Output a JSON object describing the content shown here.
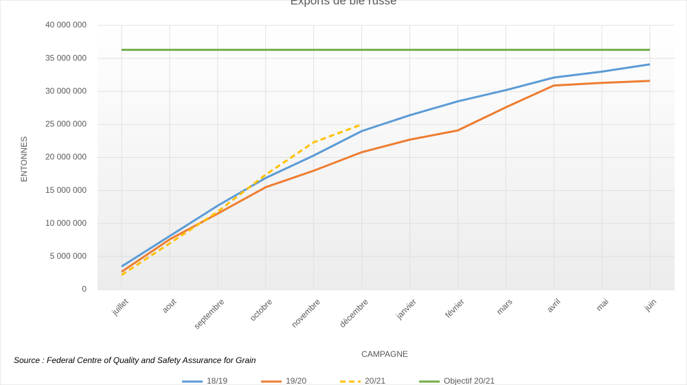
{
  "chart_data": {
    "type": "line",
    "title": "Exports de blé russe",
    "x_label": "CAMPAGNE",
    "y_label": "ENTONNES",
    "source": "Source : Federal Centre of Quality and Safety Assurance for Grain",
    "categories": [
      "juillet",
      "aout",
      "septembre",
      "octobre",
      "novembre",
      "décembre",
      "janvier",
      "février",
      "mars",
      "avril",
      "mai",
      "juin"
    ],
    "series": [
      {
        "name": "18/19",
        "color": "#5b9bd5",
        "dashed": false,
        "values": [
          3500000,
          8100000,
          12700000,
          16900000,
          20300000,
          24000000,
          26400000,
          28500000,
          30200000,
          32100000,
          33000000,
          34100000
        ]
      },
      {
        "name": "19/20",
        "color": "#ed7d31",
        "dashed": false,
        "values": [
          2700000,
          7600000,
          11500000,
          15500000,
          18000000,
          20800000,
          22700000,
          24100000,
          27600000,
          30900000,
          31300000,
          31600000
        ]
      },
      {
        "name": "20/21",
        "color": "#ffc000",
        "dashed": true,
        "values": [
          2200000,
          7000000,
          11800000,
          17400000,
          22300000,
          25000000,
          null,
          null,
          null,
          null,
          null,
          null
        ]
      },
      {
        "name": "Objectif 20/21",
        "color": "#70ad47",
        "dashed": false,
        "values": [
          36300000,
          36300000,
          36300000,
          36300000,
          36300000,
          36300000,
          36300000,
          36300000,
          36300000,
          36300000,
          36300000,
          36300000
        ]
      }
    ],
    "ylim": [
      0,
      40000000
    ],
    "yticks": [
      0,
      {
        "value": 5000000,
        "label": "5 000 000"
      },
      {
        "value": 10000000,
        "label": "10 000 000"
      },
      {
        "value": 15000000,
        "label": "15 000 000"
      },
      {
        "value": 20000000,
        "label": "20 000 000"
      },
      {
        "value": 25000000,
        "label": "25 000 000"
      },
      {
        "value": 30000000,
        "label": "30 000 000"
      },
      {
        "value": 35000000,
        "label": "35 000 000"
      },
      {
        "value": 40000000,
        "label": "40 000 000"
      }
    ],
    "grid": true,
    "legend": "bottom"
  }
}
